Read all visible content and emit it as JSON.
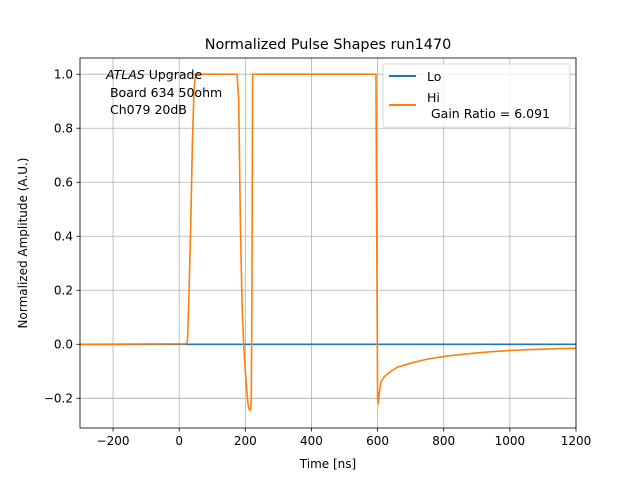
{
  "chart_data": {
    "type": "line",
    "title": "Normalized Pulse Shapes run1470",
    "xlabel": "Time [ns]",
    "ylabel": "Normalized Amplitude (A.U.)",
    "xlim": [
      -300,
      1200
    ],
    "ylim": [
      -0.31,
      1.06
    ],
    "xticks": [
      -200,
      0,
      200,
      400,
      600,
      800,
      1000,
      1200
    ],
    "xtick_labels": [
      "−200",
      "0",
      "200",
      "400",
      "600",
      "800",
      "1000",
      "1200"
    ],
    "yticks": [
      -0.2,
      0.0,
      0.2,
      0.4,
      0.6,
      0.8,
      1.0
    ],
    "ytick_labels": [
      "−0.2",
      "0.0",
      "0.2",
      "0.4",
      "0.6",
      "0.8",
      "1.0"
    ],
    "grid": true,
    "legend_position": "top-right",
    "annotation": {
      "italic": "ATLAS",
      "line1_rest": " Upgrade",
      "line2": " Board 634 50ohm",
      "line3": " Ch079 20dB"
    },
    "series": [
      {
        "name": "Lo",
        "legend_label": "Lo",
        "color": "#1f77b4",
        "x": [
          -300,
          1200
        ],
        "y": [
          0.0,
          0.0
        ]
      },
      {
        "name": "Hi",
        "legend_label": "Hi",
        "legend_label_line2": " Gain Ratio = 6.091",
        "color": "#ff7f0e",
        "x": [
          -300,
          20,
          25,
          30,
          35,
          40,
          45,
          50,
          55,
          175,
          180,
          185,
          190,
          195,
          200,
          205,
          208,
          210,
          212,
          214,
          216,
          218,
          220,
          222,
          225,
          420,
          595,
          597,
          600,
          602,
          605,
          610,
          620,
          640,
          660,
          700,
          750,
          800,
          850,
          900,
          950,
          1000,
          1050,
          1100,
          1150,
          1200
        ],
        "y": [
          0.0,
          0.002,
          0.01,
          0.2,
          0.45,
          0.75,
          0.95,
          1.0,
          1.0,
          1.0,
          0.9,
          0.45,
          0.15,
          0.0,
          -0.1,
          -0.18,
          -0.22,
          -0.235,
          -0.24,
          -0.245,
          -0.24,
          -0.2,
          0.2,
          1.0,
          1.0,
          1.0,
          1.0,
          0.5,
          -0.2,
          -0.22,
          -0.18,
          -0.14,
          -0.12,
          -0.1,
          -0.085,
          -0.07,
          -0.055,
          -0.045,
          -0.038,
          -0.032,
          -0.027,
          -0.023,
          -0.02,
          -0.018,
          -0.016,
          -0.015
        ]
      }
    ]
  }
}
